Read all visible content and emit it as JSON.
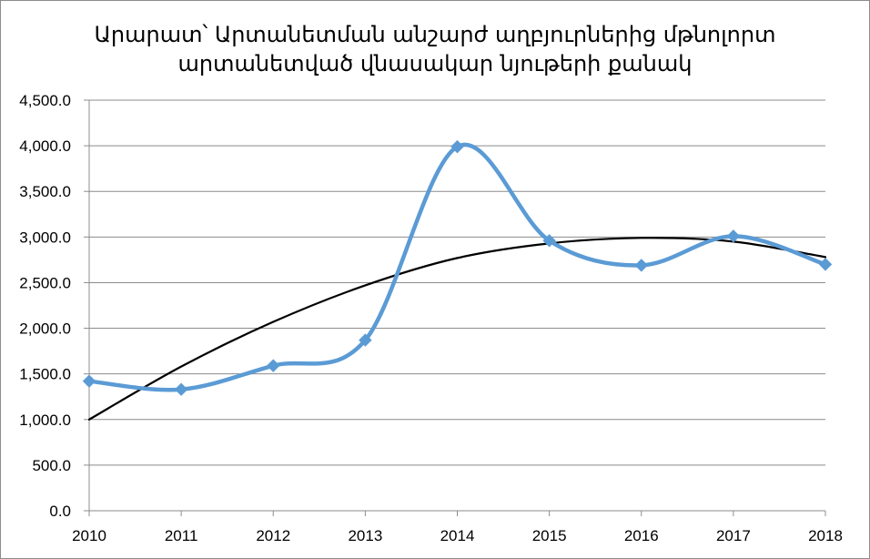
{
  "chart_data": {
    "type": "line",
    "title_lines": [
      "Արարատ՝ Արտանետման անշարժ աղբյուրներից մթնոլորտ",
      "արտանետված վնասակար նյութերի քանակ"
    ],
    "xlabel": "",
    "ylabel": "",
    "x": [
      2010,
      2011,
      2012,
      2013,
      2014,
      2015,
      2016,
      2017,
      2018
    ],
    "x_tick_labels": [
      "2010",
      "2011",
      "2012",
      "2013",
      "2014",
      "2015",
      "2016",
      "2017",
      "2018"
    ],
    "ylim": [
      0,
      4500
    ],
    "y_ticks": [
      0,
      500,
      1000,
      1500,
      2000,
      2500,
      3000,
      3500,
      4000,
      4500
    ],
    "y_tick_labels": [
      "0.0",
      "500.0",
      "1,000.0",
      "1,500.0",
      "2,000.0",
      "2,500.0",
      "3,000.0",
      "3,500.0",
      "4,000.0",
      "4,500.0"
    ],
    "grid": true,
    "legend": "none",
    "series": [
      {
        "values": [
          1420,
          1330,
          1590,
          1870,
          3990,
          2960,
          2690,
          3010,
          2700
        ],
        "color": "#5b9bd5",
        "marker": "diamond",
        "smooth": true
      },
      {
        "kind": "polynomial-trendline",
        "values": [
          1000,
          1580,
          2070,
          2470,
          2770,
          2930,
          2990,
          2950,
          2780
        ],
        "color": "#000000",
        "marker": "none",
        "smooth": true
      }
    ]
  }
}
